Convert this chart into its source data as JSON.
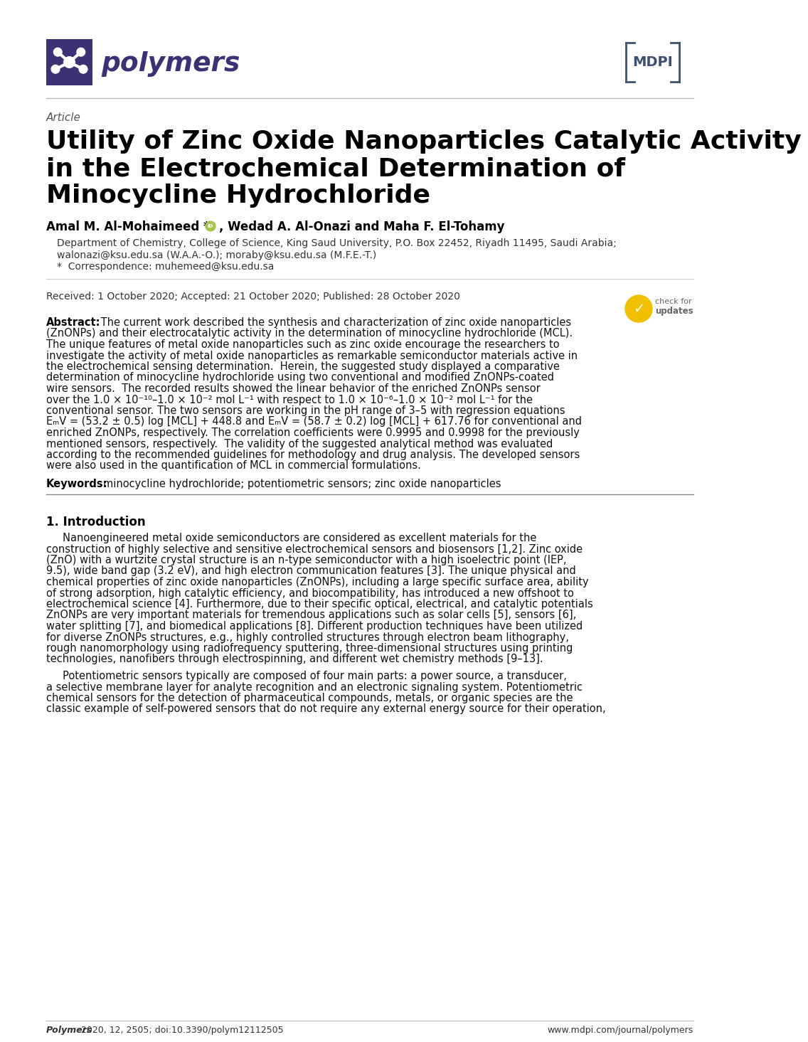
{
  "bg_color": "#ffffff",
  "journal_name": "polymers",
  "logo_color": "#3d3075",
  "mdpi_color": "#3d5070",
  "article_label": "Article",
  "title_line1": "Utility of Zinc Oxide Nanoparticles Catalytic Activity",
  "title_line2": "in the Electrochemical Determination of",
  "title_line3": "Minocycline Hydrochloride",
  "authors_pre": "Amal M. Al-Mohaimeed *",
  "authors_post": ", Wedad A. Al-Onazi and Maha F. El-Tohamy",
  "affiliation1": "Department of Chemistry, College of Science, King Saud University, P.O. Box 22452, Riyadh 11495, Saudi Arabia;",
  "affiliation2": "walonazi@ksu.edu.sa (W.A.A.-O.); moraby@ksu.edu.sa (M.F.E.-T.)",
  "correspondence": "*  Correspondence: muhemeed@ksu.edu.sa",
  "dates": "Received: 1 October 2020; Accepted: 21 October 2020; Published: 28 October 2020",
  "abstract_lines": [
    "Abstract: The current work described the synthesis and characterization of zinc oxide nanoparticles",
    "(ZnONPs) and their electrocatalytic activity in the determination of minocycline hydrochloride (MCL).",
    "The unique features of metal oxide nanoparticles such as zinc oxide encourage the researchers to",
    "investigate the activity of metal oxide nanoparticles as remarkable semiconductor materials active in",
    "the electrochemical sensing determination.  Herein, the suggested study displayed a comparative",
    "determination of minocycline hydrochloride using two conventional and modified ZnONPs-coated",
    "wire sensors.  The recorded results showed the linear behavior of the enriched ZnONPs sensor",
    "over the 1.0 × 10⁻¹⁰–1.0 × 10⁻² mol L⁻¹ with respect to 1.0 × 10⁻⁶–1.0 × 10⁻² mol L⁻¹ for the",
    "conventional sensor. The two sensors are working in the pH range of 3–5 with regression equations",
    "EₘV = (53.2 ± 0.5) log [MCL] + 448.8 and EₘV = (58.7 ± 0.2) log [MCL] + 617.76 for conventional and",
    "enriched ZnONPs, respectively. The correlation coefficients were 0.9995 and 0.9998 for the previously",
    "mentioned sensors, respectively.  The validity of the suggested analytical method was evaluated",
    "according to the recommended guidelines for methodology and drug analysis. The developed sensors",
    "were also used in the quantification of MCL in commercial formulations."
  ],
  "keywords_label": "Keywords:",
  "keywords_text": "minocycline hydrochloride; potentiometric sensors; zinc oxide nanoparticles",
  "section1_title": "1. Introduction",
  "intro1_lines": [
    "     Nanoengineered metal oxide semiconductors are considered as excellent materials for the",
    "construction of highly selective and sensitive electrochemical sensors and biosensors [1,2]. Zinc oxide",
    "(ZnO) with a wurtzite crystal structure is an n-type semiconductor with a high isoelectric point (IEP,",
    "9.5), wide band gap (3.2 eV), and high electron communication features [3]. The unique physical and",
    "chemical properties of zinc oxide nanoparticles (ZnONPs), including a large specific surface area, ability",
    "of strong adsorption, high catalytic efficiency, and biocompatibility, has introduced a new offshoot to",
    "electrochemical science [4]. Furthermore, due to their specific optical, electrical, and catalytic potentials",
    "ZnONPs are very important materials for tremendous applications such as solar cells [5], sensors [6],",
    "water splitting [7], and biomedical applications [8]. Different production techniques have been utilized",
    "for diverse ZnONPs structures, e.g., highly controlled structures through electron beam lithography,",
    "rough nanomorphology using radiofrequency sputtering, three-dimensional structures using printing",
    "technologies, nanofibers through electrospinning, and different wet chemistry methods [9–13]."
  ],
  "intro2_lines": [
    "     Potentiometric sensors typically are composed of four main parts: a power source, a transducer,",
    "a selective membrane layer for analyte recognition and an electronic signaling system. Potentiometric",
    "chemical sensors for the detection of pharmaceutical compounds, metals, or organic species are the",
    "classic example of self-powered sensors that do not require any external energy source for their operation,"
  ],
  "footer_left": "Polymers 2020, 12, 2505; doi:10.3390/polym12112505",
  "footer_right": "www.mdpi.com/journal/polymers"
}
